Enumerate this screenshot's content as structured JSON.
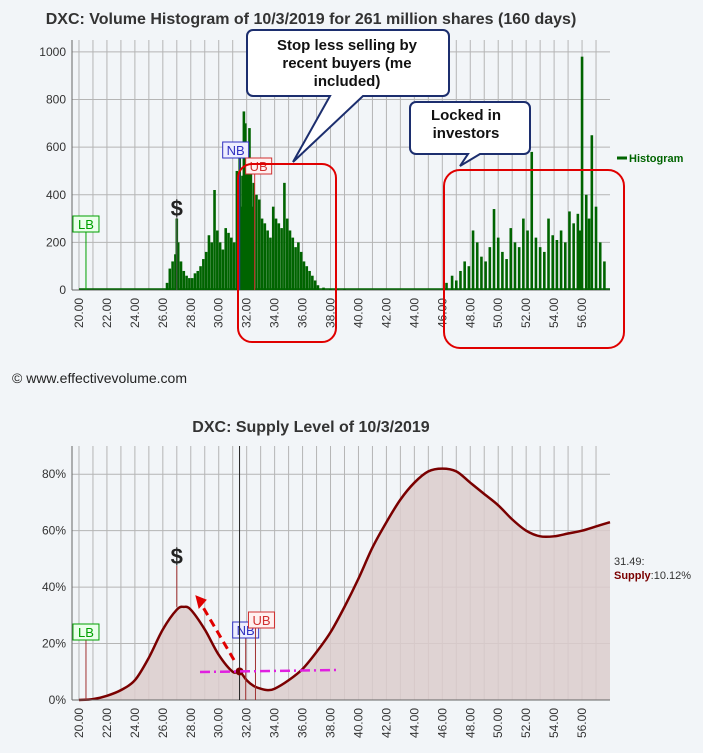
{
  "copyright": "© www.effectivevolume.com",
  "chart_data": [
    {
      "type": "bar",
      "title": "DXC: Volume Histogram of 10/3/2019 for 261 million shares (160 days)",
      "legend": "Histogram",
      "legend_position": "right",
      "xlim": [
        19.5,
        58.0
      ],
      "ylim": [
        0,
        1050
      ],
      "x_ticks": [
        "20.00",
        "22.00",
        "24.00",
        "26.00",
        "28.00",
        "30.00",
        "32.00",
        "34.00",
        "36.00",
        "38.00",
        "40.00",
        "42.00",
        "44.00",
        "46.00",
        "48.00",
        "50.00",
        "52.00",
        "54.00",
        "56.00"
      ],
      "y_ticks": [
        "0",
        "200",
        "400",
        "600",
        "800",
        "1000"
      ],
      "grid": true,
      "bar_color": "#006400",
      "series": [
        {
          "x": [
            26.3,
            26.5,
            26.7,
            26.9,
            27.0,
            27.1,
            27.3,
            27.5,
            27.7,
            27.9,
            28.1,
            28.3,
            28.5,
            28.7,
            28.9,
            29.1,
            29.3,
            29.5,
            29.7,
            29.9,
            30.1,
            30.3,
            30.5,
            30.7,
            30.9,
            31.1,
            31.3,
            31.5,
            31.6,
            31.7,
            31.8,
            31.9,
            32.0,
            32.1,
            32.2,
            32.3,
            32.4,
            32.5,
            32.7,
            32.9,
            33.1,
            33.3,
            33.5,
            33.7,
            33.9,
            34.1,
            34.3,
            34.5,
            34.7,
            34.9,
            35.1,
            35.3,
            35.5,
            35.7,
            35.9,
            36.1,
            36.3,
            36.5,
            36.7,
            36.9,
            37.1,
            37.5,
            38.0,
            38.5,
            39.0,
            46.3,
            46.7,
            47.0,
            47.3,
            47.6,
            47.9,
            48.2,
            48.5,
            48.8,
            49.1,
            49.4,
            49.7,
            50.0,
            50.3,
            50.6,
            50.9,
            51.2,
            51.5,
            51.8,
            52.1,
            52.4,
            52.7,
            53.0,
            53.3,
            53.6,
            53.9,
            54.2,
            54.5,
            54.8,
            55.1,
            55.4,
            55.7,
            55.85,
            56.0,
            56.3,
            56.5,
            56.7,
            57.0,
            57.3,
            57.6
          ],
          "values": [
            30,
            90,
            120,
            150,
            300,
            200,
            120,
            80,
            60,
            50,
            50,
            70,
            80,
            100,
            130,
            160,
            230,
            200,
            420,
            250,
            200,
            170,
            260,
            240,
            220,
            200,
            500,
            560,
            350,
            480,
            750,
            700,
            600,
            520,
            680,
            490,
            350,
            450,
            400,
            380,
            300,
            280,
            250,
            220,
            350,
            300,
            280,
            260,
            450,
            300,
            250,
            220,
            180,
            200,
            160,
            120,
            100,
            80,
            60,
            40,
            20,
            10,
            5,
            3,
            2,
            30,
            60,
            40,
            80,
            120,
            100,
            250,
            200,
            140,
            120,
            180,
            340,
            220,
            160,
            130,
            260,
            200,
            180,
            300,
            250,
            580,
            220,
            180,
            160,
            300,
            230,
            210,
            250,
            200,
            330,
            280,
            320,
            250,
            980,
            400,
            300,
            650,
            350,
            200,
            120
          ]
        }
      ],
      "annotations": [
        {
          "label": "LB",
          "x": 20.5
        },
        {
          "label": "$",
          "x": 27.0
        },
        {
          "label": "NB",
          "x": 31.5
        },
        {
          "label": "UB",
          "x": 32.0
        }
      ],
      "callouts": [
        {
          "text": [
            "Stop less selling by",
            "recent buyers (me",
            "included)"
          ]
        },
        {
          "text": [
            "Locked in",
            "investors"
          ]
        }
      ]
    },
    {
      "type": "area",
      "title": "DXC: Supply Level of 10/3/2019",
      "xlim": [
        19.5,
        58.0
      ],
      "ylim": [
        0,
        90
      ],
      "x_ticks": [
        "20.00",
        "22.00",
        "24.00",
        "26.00",
        "28.00",
        "30.00",
        "32.00",
        "34.00",
        "36.00",
        "38.00",
        "40.00",
        "42.00",
        "44.00",
        "46.00",
        "48.00",
        "50.00",
        "52.00",
        "54.00",
        "56.00"
      ],
      "y_ticks": [
        "0%",
        "20%",
        "40%",
        "60%",
        "80%"
      ],
      "grid": true,
      "line_color": "#7a0000",
      "fill_color": "#dccccc",
      "series": [
        {
          "name": "Supply",
          "x": [
            20,
            21,
            22,
            23,
            24,
            25,
            26,
            27,
            27.5,
            28,
            29,
            30,
            31,
            31.49,
            32,
            32.5,
            33,
            33.5,
            34,
            35,
            36,
            37,
            38,
            39,
            40,
            41,
            42,
            43,
            44,
            45,
            46,
            47,
            48,
            49,
            50,
            51,
            52,
            53,
            54,
            55,
            56,
            57,
            58
          ],
          "values": [
            0,
            0.3,
            1.5,
            3.5,
            7,
            15,
            25,
            32,
            33,
            32,
            25,
            16,
            10,
            10.12,
            7,
            5,
            4,
            3.5,
            4,
            7,
            11,
            17,
            24,
            33,
            43,
            54,
            63,
            71,
            77,
            81,
            82,
            81,
            77,
            73,
            69,
            64,
            60,
            58,
            58,
            59,
            60,
            61.5,
            63
          ]
        }
      ],
      "annotations": [
        {
          "label": "LB",
          "x": 20.5
        },
        {
          "label": "$",
          "x": 27.0
        },
        {
          "label": "NB",
          "x": 31.5
        },
        {
          "label": "UB",
          "x": 32.2
        }
      ],
      "current": {
        "price": "31.49",
        "prefix": "31.49:",
        "label": "Supply",
        "value": ":10.12%"
      }
    }
  ]
}
